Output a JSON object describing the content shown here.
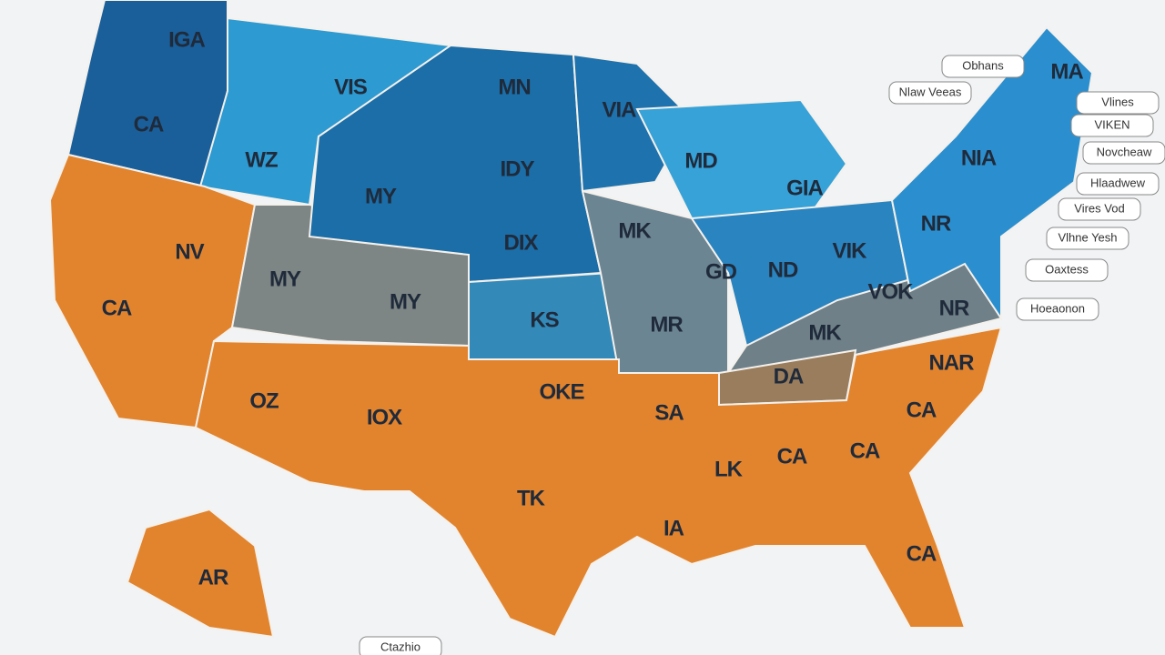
{
  "state_labels": [
    "IGA",
    "CA",
    "VIS",
    "MN",
    "VIA",
    "WZ",
    "IDY",
    "MD",
    "GIA",
    "NIA",
    "MA",
    "MY",
    "DIX",
    "MK",
    "NV",
    "MY",
    "MY",
    "KS",
    "GD",
    "ND",
    "VIK",
    "NR",
    "VOK",
    "MR",
    "MK",
    "NR",
    "CA",
    "NAR",
    "DA",
    "OKE",
    "OZ",
    "IOX",
    "SA",
    "CA",
    "LK",
    "CA",
    "CA",
    "TK",
    "IA",
    "CA",
    "AR"
  ],
  "callouts": [
    "Obhans",
    "Nlaw Veeas",
    "Vlines",
    "VIKEN",
    "Novcheaw",
    "Hlaadwew",
    "Vires Vod",
    "Vlhne Yesh",
    "Oaxtess",
    "Hoeaonon",
    "Ctazhio"
  ]
}
